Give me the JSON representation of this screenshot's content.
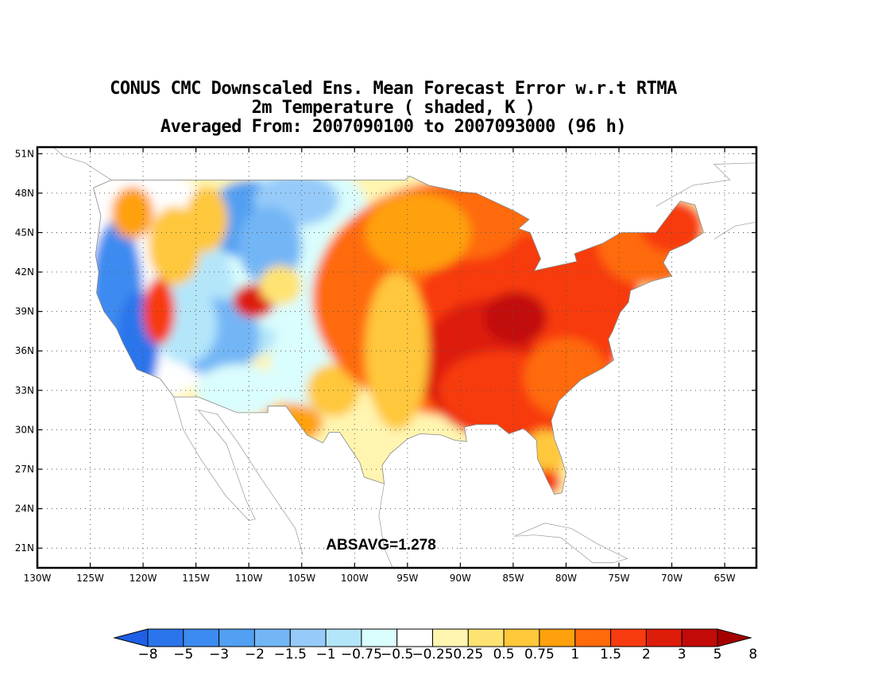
{
  "titles": [
    "CONUS CMC Downscaled Ens. Mean Forecast Error w.r.t RTMA",
    "2m Temperature ( shaded, K )",
    "Averaged From: 2007090100 to 2007093000 (96 h)"
  ],
  "map": {
    "lon_range": [
      -130,
      -62
    ],
    "lat_range": [
      19.5,
      51.5
    ],
    "lon_ticks": [
      {
        "value": -130,
        "label": "130W"
      },
      {
        "value": -125,
        "label": "125W"
      },
      {
        "value": -120,
        "label": "120W"
      },
      {
        "value": -115,
        "label": "115W"
      },
      {
        "value": -110,
        "label": "110W"
      },
      {
        "value": -105,
        "label": "105W"
      },
      {
        "value": -100,
        "label": "100W"
      },
      {
        "value": -95,
        "label": "95W"
      },
      {
        "value": -90,
        "label": "90W"
      },
      {
        "value": -85,
        "label": "85W"
      },
      {
        "value": -80,
        "label": "80W"
      },
      {
        "value": -75,
        "label": "75W"
      },
      {
        "value": -70,
        "label": "70W"
      },
      {
        "value": -65,
        "label": "65W"
      }
    ],
    "lat_ticks": [
      {
        "value": 21,
        "label": "21N"
      },
      {
        "value": 24,
        "label": "24N"
      },
      {
        "value": 27,
        "label": "27N"
      },
      {
        "value": 30,
        "label": "30N"
      },
      {
        "value": 33,
        "label": "33N"
      },
      {
        "value": 36,
        "label": "36N"
      },
      {
        "value": 39,
        "label": "39N"
      },
      {
        "value": 42,
        "label": "42N"
      },
      {
        "value": 45,
        "label": "45N"
      },
      {
        "value": 48,
        "label": "48N"
      },
      {
        "value": 51,
        "label": "51N"
      }
    ],
    "grid": true,
    "statistic": "ABSAVG=1.278",
    "statistic_position": {
      "lon": -97.5,
      "lat": 20.9
    }
  },
  "colorbar": {
    "labels": [
      "-8",
      "-5",
      "-3",
      "-2",
      "-1.5",
      "-1",
      "-0.75",
      "-0.5",
      "-0.25",
      "0.25",
      "0.5",
      "0.75",
      "1",
      "1.5",
      "2",
      "3",
      "5",
      "8"
    ],
    "colors": [
      "#1e5fe6",
      "#2b75ec",
      "#3c8bf0",
      "#52a0f3",
      "#73b6f6",
      "#96cbf9",
      "#b4e6fa",
      "#dafdfd",
      "#ffffff",
      "#fff5b0",
      "#ffe372",
      "#ffc73a",
      "#ffa10c",
      "#ff6a0a",
      "#f83a10",
      "#de1c0a",
      "#c20a08",
      "#a50000"
    ]
  }
}
